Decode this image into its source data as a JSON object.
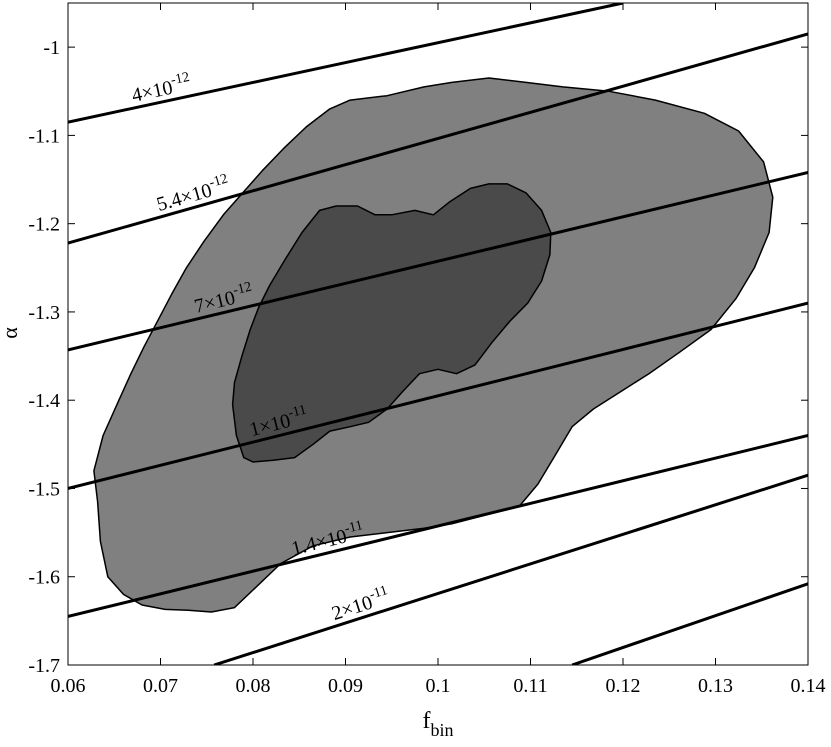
{
  "chart_data": {
    "type": "contour",
    "xlabel": "f",
    "xlabel_sub": "bin",
    "ylabel": "α",
    "xlim": [
      0.06,
      0.14
    ],
    "ylim": [
      -1.7,
      -0.95
    ],
    "x_ticks": [
      0.06,
      0.07,
      0.08,
      0.09,
      0.1,
      0.11,
      0.12,
      0.13,
      0.14
    ],
    "x_tick_labels": [
      "0.06",
      "0.07",
      "0.08",
      "0.09",
      "0.1",
      "0.11",
      "0.12",
      "0.13",
      "0.14"
    ],
    "y_ticks": [
      -1.0,
      -1.1,
      -1.2,
      -1.3,
      -1.4,
      -1.5,
      -1.6,
      -1.7
    ],
    "y_tick_labels": [
      "-1",
      "-1.1",
      "-1.2",
      "-1.3",
      "-1.4",
      "-1.5",
      "-1.6",
      "-1.7"
    ],
    "grid": false,
    "fill_colors": {
      "outer_region": "#808080",
      "inner_region": "#4a4a4a",
      "lines": "#000000"
    },
    "regions": [
      {
        "name": "outer",
        "points": [
          [
            0.0632,
            -1.515
          ],
          [
            0.0628,
            -1.48
          ],
          [
            0.0638,
            -1.44
          ],
          [
            0.0655,
            -1.4
          ],
          [
            0.0668,
            -1.37
          ],
          [
            0.0682,
            -1.34
          ],
          [
            0.0697,
            -1.31
          ],
          [
            0.0712,
            -1.28
          ],
          [
            0.0728,
            -1.25
          ],
          [
            0.0747,
            -1.22
          ],
          [
            0.0768,
            -1.19
          ],
          [
            0.0789,
            -1.165
          ],
          [
            0.081,
            -1.14
          ],
          [
            0.0833,
            -1.115
          ],
          [
            0.0858,
            -1.09
          ],
          [
            0.0883,
            -1.07
          ],
          [
            0.0905,
            -1.06
          ],
          [
            0.0945,
            -1.055
          ],
          [
            0.0985,
            -1.045
          ],
          [
            0.1015,
            -1.04
          ],
          [
            0.1055,
            -1.035
          ],
          [
            0.1095,
            -1.04
          ],
          [
            0.1135,
            -1.045
          ],
          [
            0.1185,
            -1.05
          ],
          [
            0.1235,
            -1.06
          ],
          [
            0.1288,
            -1.075
          ],
          [
            0.1325,
            -1.095
          ],
          [
            0.1352,
            -1.13
          ],
          [
            0.1362,
            -1.17
          ],
          [
            0.1358,
            -1.21
          ],
          [
            0.1342,
            -1.25
          ],
          [
            0.1322,
            -1.285
          ],
          [
            0.1295,
            -1.32
          ],
          [
            0.1262,
            -1.345
          ],
          [
            0.1228,
            -1.37
          ],
          [
            0.1198,
            -1.39
          ],
          [
            0.1168,
            -1.41
          ],
          [
            0.1145,
            -1.43
          ],
          [
            0.1128,
            -1.46
          ],
          [
            0.1108,
            -1.495
          ],
          [
            0.1088,
            -1.52
          ],
          [
            0.1052,
            -1.53
          ],
          [
            0.1015,
            -1.54
          ],
          [
            0.0985,
            -1.545
          ],
          [
            0.0945,
            -1.55
          ],
          [
            0.0905,
            -1.555
          ],
          [
            0.0865,
            -1.565
          ],
          [
            0.083,
            -1.585
          ],
          [
            0.08,
            -1.615
          ],
          [
            0.078,
            -1.635
          ],
          [
            0.0755,
            -1.64
          ],
          [
            0.073,
            -1.638
          ],
          [
            0.0705,
            -1.637
          ],
          [
            0.068,
            -1.632
          ],
          [
            0.066,
            -1.62
          ],
          [
            0.0643,
            -1.6
          ],
          [
            0.0635,
            -1.56
          ]
        ]
      },
      {
        "name": "inner",
        "points": [
          [
            0.0778,
            -1.405
          ],
          [
            0.078,
            -1.38
          ],
          [
            0.0788,
            -1.35
          ],
          [
            0.0797,
            -1.32
          ],
          [
            0.0806,
            -1.295
          ],
          [
            0.0818,
            -1.27
          ],
          [
            0.0835,
            -1.24
          ],
          [
            0.0853,
            -1.21
          ],
          [
            0.0872,
            -1.185
          ],
          [
            0.089,
            -1.18
          ],
          [
            0.0913,
            -1.18
          ],
          [
            0.0932,
            -1.19
          ],
          [
            0.095,
            -1.19
          ],
          [
            0.0975,
            -1.185
          ],
          [
            0.0995,
            -1.19
          ],
          [
            0.1013,
            -1.175
          ],
          [
            0.1035,
            -1.16
          ],
          [
            0.1055,
            -1.155
          ],
          [
            0.1075,
            -1.155
          ],
          [
            0.1095,
            -1.165
          ],
          [
            0.1112,
            -1.185
          ],
          [
            0.1122,
            -1.21
          ],
          [
            0.1121,
            -1.235
          ],
          [
            0.1112,
            -1.265
          ],
          [
            0.1097,
            -1.29
          ],
          [
            0.1078,
            -1.31
          ],
          [
            0.1058,
            -1.335
          ],
          [
            0.104,
            -1.36
          ],
          [
            0.102,
            -1.37
          ],
          [
            0.1,
            -1.365
          ],
          [
            0.098,
            -1.37
          ],
          [
            0.0962,
            -1.39
          ],
          [
            0.0945,
            -1.41
          ],
          [
            0.0925,
            -1.425
          ],
          [
            0.0905,
            -1.43
          ],
          [
            0.0883,
            -1.435
          ],
          [
            0.0865,
            -1.45
          ],
          [
            0.0845,
            -1.465
          ],
          [
            0.0822,
            -1.468
          ],
          [
            0.08,
            -1.47
          ],
          [
            0.079,
            -1.465
          ],
          [
            0.0782,
            -1.44
          ]
        ]
      }
    ],
    "lines": [
      {
        "label": "4×10⁻¹²",
        "label_mantissa": "4×10",
        "label_exponent": "-12",
        "x_label": 0.0672,
        "points": [
          [
            0.06,
            -1.085
          ],
          [
            0.12,
            -0.95
          ]
        ]
      },
      {
        "label": "5.4×10⁻¹²",
        "label_mantissa": "5.4×10",
        "label_exponent": "-12",
        "x_label": 0.07,
        "points": [
          [
            0.06,
            -1.222
          ],
          [
            0.14,
            -0.985
          ]
        ]
      },
      {
        "label": "7×10⁻¹²",
        "label_mantissa": "7×10",
        "label_exponent": "-12",
        "x_label": 0.074,
        "points": [
          [
            0.06,
            -1.343
          ],
          [
            0.14,
            -1.142
          ]
        ]
      },
      {
        "label": "1×10⁻¹¹",
        "label_mantissa": "1×10",
        "label_exponent": "-11",
        "x_label": 0.08,
        "points": [
          [
            0.06,
            -1.5
          ],
          [
            0.14,
            -1.29
          ]
        ]
      },
      {
        "label": "1.4×10⁻¹¹",
        "label_mantissa": "1.4×10",
        "label_exponent": "-11",
        "x_label": 0.0845,
        "points": [
          [
            0.06,
            -1.645
          ],
          [
            0.14,
            -1.44
          ]
        ]
      },
      {
        "label": "2×10⁻¹¹",
        "label_mantissa": "2×10",
        "label_exponent": "-11",
        "x_label": 0.089,
        "points": [
          [
            0.0758,
            -1.7
          ],
          [
            0.14,
            -1.485
          ]
        ]
      },
      {
        "label": "",
        "label_mantissa": "",
        "label_exponent": "",
        "x_label": null,
        "points": [
          [
            0.1145,
            -1.7
          ],
          [
            0.14,
            -1.608
          ]
        ]
      }
    ]
  }
}
